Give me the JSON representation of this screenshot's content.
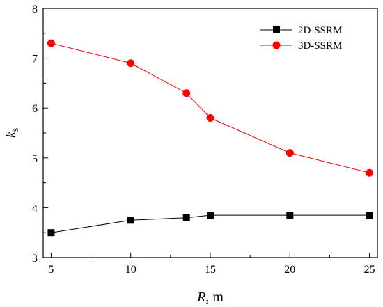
{
  "chart_data": {
    "type": "line",
    "xlabel_main": "R",
    "xlabel_unit": ", m",
    "ylabel_main": "k",
    "ylabel_sub": "s",
    "xlim": [
      4.5,
      25.5
    ],
    "ylim": [
      3,
      8
    ],
    "x_ticks": [
      5,
      10,
      15,
      20,
      25
    ],
    "y_ticks": [
      3,
      4,
      5,
      6,
      7,
      8
    ],
    "legend_position": "top-right",
    "grid": false,
    "series": [
      {
        "name": "2D-SSRM",
        "color": "#000000",
        "marker": "square",
        "x": [
          5,
          10,
          13.5,
          15,
          20,
          25
        ],
        "y": [
          3.5,
          3.75,
          3.8,
          3.85,
          3.85,
          3.85
        ]
      },
      {
        "name": "3D-SSRM",
        "color": "#ff0000",
        "marker": "circle",
        "x": [
          5,
          10,
          13.5,
          15,
          20,
          25
        ],
        "y": [
          7.3,
          6.9,
          6.3,
          5.8,
          5.1,
          4.7
        ]
      }
    ]
  }
}
